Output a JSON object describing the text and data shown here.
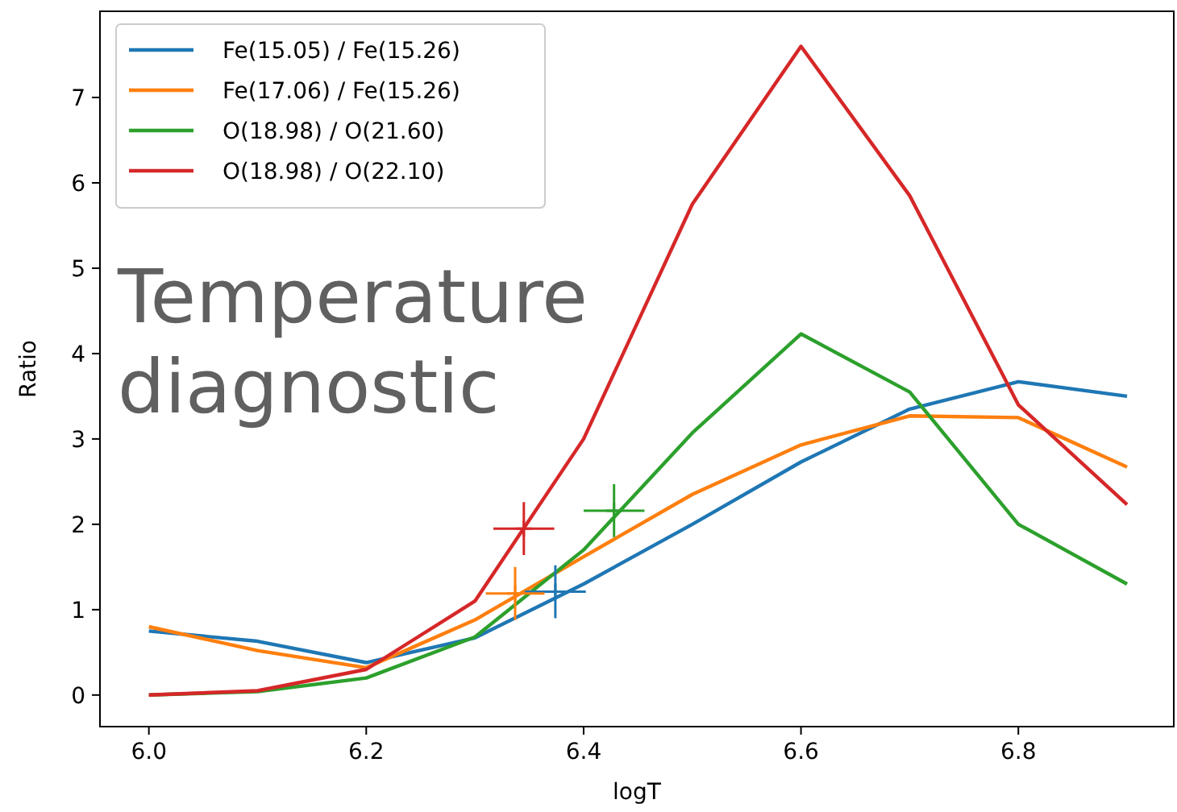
{
  "chart_data": {
    "type": "line",
    "xlabel": "logT",
    "ylabel": "Ratio",
    "x": [
      6.0,
      6.1,
      6.2,
      6.3,
      6.4,
      6.5,
      6.6,
      6.7,
      6.8,
      6.9
    ],
    "xlim": [
      5.955,
      6.943
    ],
    "ylim": [
      -0.37,
      8.01
    ],
    "xticks": [
      {
        "value": 6.0,
        "label": "6.0"
      },
      {
        "value": 6.2,
        "label": "6.2"
      },
      {
        "value": 6.4,
        "label": "6.4"
      },
      {
        "value": 6.6,
        "label": "6.6"
      },
      {
        "value": 6.8,
        "label": "6.8"
      }
    ],
    "yticks": [
      0,
      1,
      2,
      3,
      4,
      5,
      6,
      7
    ],
    "grid": false,
    "legend": "top left",
    "marker": "none",
    "line_style": "solid",
    "annotations": [
      "Temperature diagnostic"
    ],
    "series": [
      {
        "name": "Fe(15.05) / Fe(15.26)",
        "color": "#1f77b4",
        "values": [
          0.75,
          0.63,
          0.38,
          0.67,
          1.3,
          2.0,
          2.73,
          3.35,
          3.67,
          3.5
        ]
      },
      {
        "name": "Fe(17.06) / Fe(15.26)",
        "color": "#ff7f0e",
        "values": [
          0.8,
          0.52,
          0.32,
          0.88,
          1.62,
          2.35,
          2.93,
          3.27,
          3.25,
          2.67
        ]
      },
      {
        "name": "O(18.98) / O(21.60)",
        "color": "#2ca02c",
        "values": [
          0.0,
          0.04,
          0.2,
          0.68,
          1.7,
          3.07,
          4.23,
          3.55,
          2.0,
          1.3
        ]
      },
      {
        "name": "O(18.98) / O(22.10)",
        "color": "#d62728",
        "values": [
          0.0,
          0.05,
          0.3,
          1.1,
          3.0,
          5.75,
          7.6,
          5.85,
          3.4,
          2.23
        ]
      },
      {
        "type": "scatter",
        "marker": "cross",
        "color": "#1f77b4",
        "x": [
          6.374
        ],
        "values": [
          1.21
        ],
        "errors": [
          0.31
        ],
        "xerrors": [
          0.028
        ]
      },
      {
        "type": "scatter",
        "marker": "cross",
        "color": "#ff7f0e",
        "x": [
          6.337
        ],
        "values": [
          1.19
        ],
        "errors": [
          0.31
        ],
        "xerrors": [
          0.027
        ]
      },
      {
        "type": "scatter",
        "marker": "cross",
        "color": "#2ca02c",
        "x": [
          6.428
        ],
        "values": [
          2.16
        ],
        "errors": [
          0.31
        ],
        "xerrors": [
          0.028
        ]
      },
      {
        "type": "scatter",
        "marker": "cross",
        "color": "#d62728",
        "x": [
          6.345
        ],
        "values": [
          1.95
        ],
        "errors": [
          0.31
        ],
        "xerrors": [
          0.028
        ]
      }
    ]
  }
}
